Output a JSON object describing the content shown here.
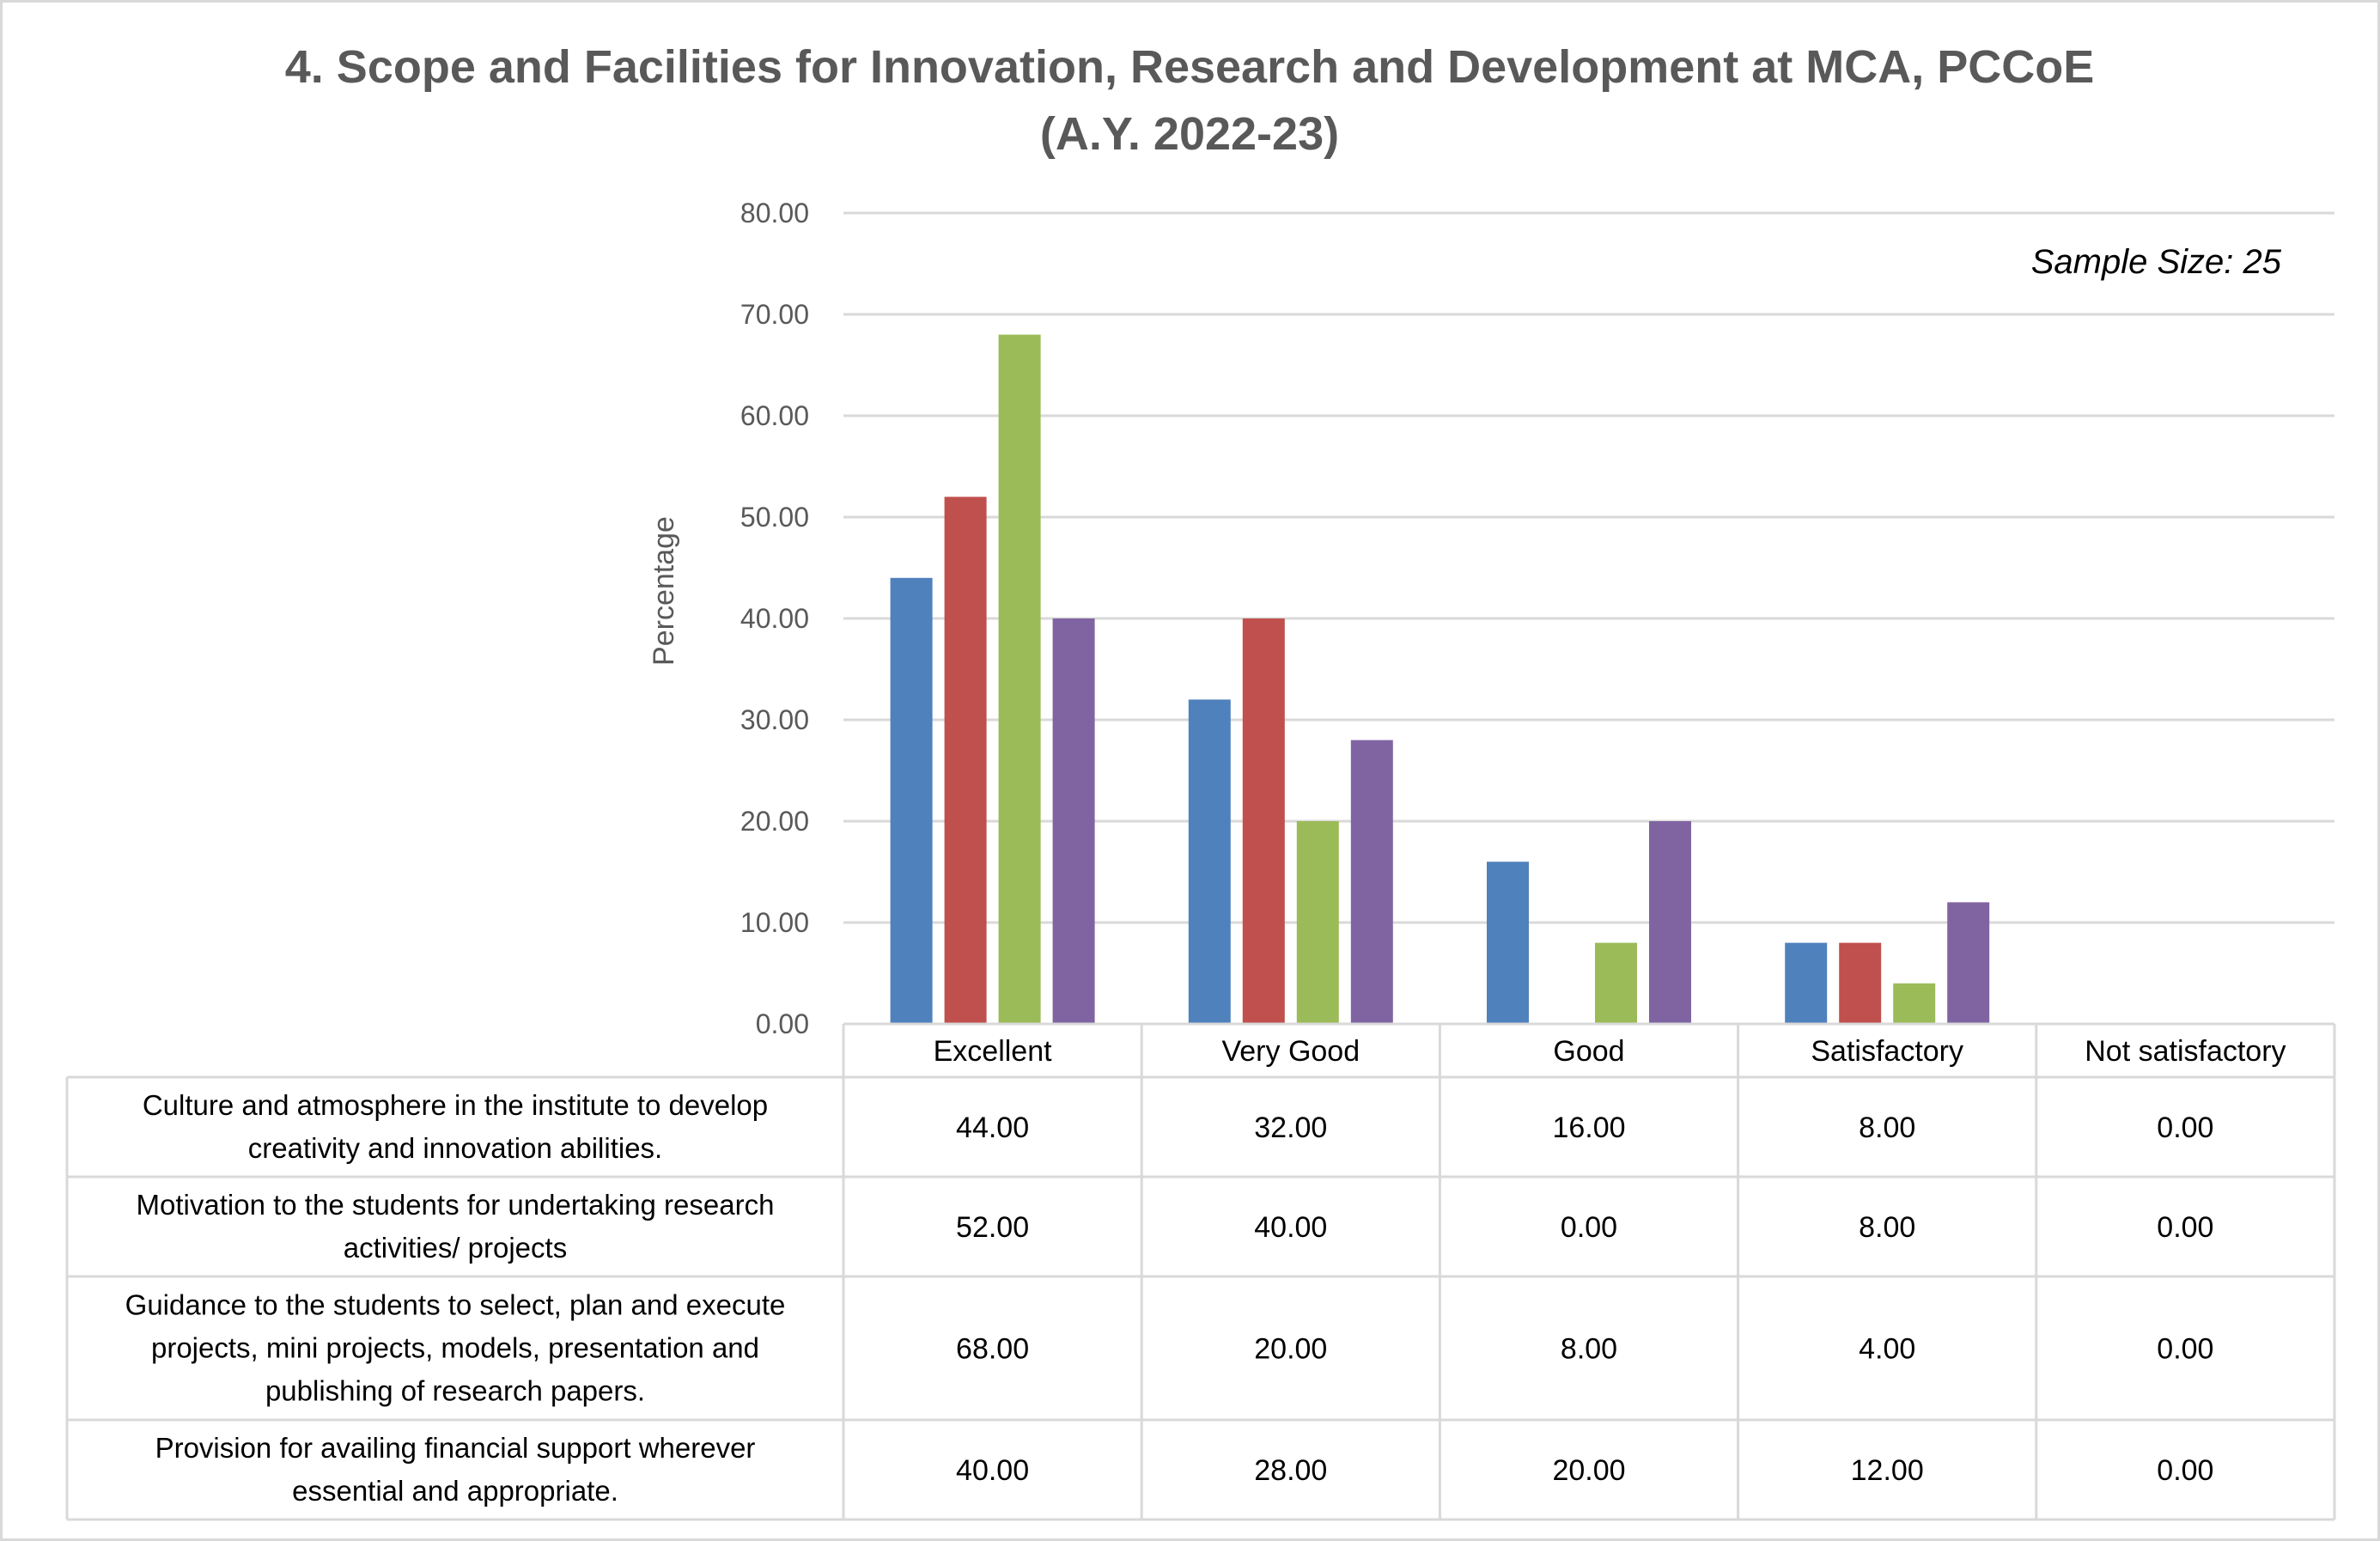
{
  "chart_data": {
    "type": "bar",
    "title_lines": [
      "4. Scope and Facilities for Innovation, Research and Development at MCA, PCCoE",
      "(A.Y. 2022-23)"
    ],
    "annotation": "Sample Size: 25",
    "xlabel": "",
    "ylabel": "Percentage",
    "ylim": [
      0,
      80
    ],
    "ytick_step": 10,
    "ytick_labels": [
      "0.00",
      "10.00",
      "20.00",
      "30.00",
      "40.00",
      "50.00",
      "60.00",
      "70.00",
      "80.00"
    ],
    "grid": true,
    "legend": "data-table-below",
    "categories": [
      "Excellent",
      "Very Good",
      "Good",
      "Satisfactory",
      "Not satisfactory"
    ],
    "series": [
      {
        "name": "Culture and atmosphere in the institute to develop creativity and innovation abilities.",
        "label_lines": [
          "Culture and atmosphere in the institute to develop",
          "creativity and innovation abilities."
        ],
        "color": "#4F81BD",
        "values": [
          44.0,
          32.0,
          16.0,
          8.0,
          0.0
        ],
        "display": [
          "44.00",
          "32.00",
          "16.00",
          "8.00",
          "0.00"
        ]
      },
      {
        "name": "Motivation to the students for undertaking research activities/ projects",
        "label_lines": [
          "Motivation to the students for undertaking research",
          "activities/ projects"
        ],
        "color": "#C0504D",
        "values": [
          52.0,
          40.0,
          0.0,
          8.0,
          0.0
        ],
        "display": [
          "52.00",
          "40.00",
          "0.00",
          "8.00",
          "0.00"
        ]
      },
      {
        "name": "Guidance to the students to select, plan and execute projects, mini projects, models, presentation and publishing of research papers.",
        "label_lines": [
          "Guidance to the students to select, plan and execute",
          "projects, mini projects, models, presentation and",
          "publishing of research papers."
        ],
        "color": "#9BBB59",
        "values": [
          68.0,
          20.0,
          8.0,
          4.0,
          0.0
        ],
        "display": [
          "68.00",
          "20.00",
          "8.00",
          "4.00",
          "0.00"
        ]
      },
      {
        "name": "Provision for availing financial support wherever essential and appropriate.",
        "label_lines": [
          "Provision for availing financial support wherever",
          "essential and appropriate."
        ],
        "color": "#8064A2",
        "values": [
          40.0,
          28.0,
          20.0,
          12.0,
          0.0
        ],
        "display": [
          "40.00",
          "28.00",
          "20.00",
          "12.00",
          "0.00"
        ]
      }
    ]
  }
}
